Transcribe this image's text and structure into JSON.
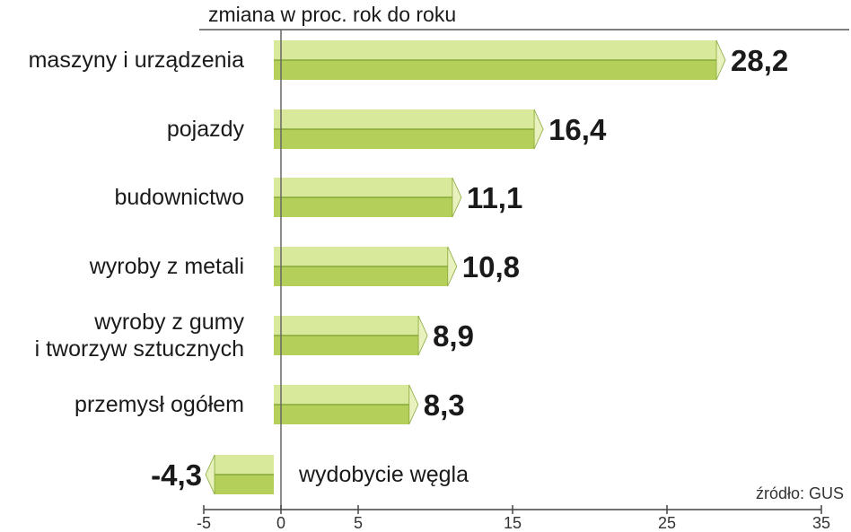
{
  "chart_data": {
    "type": "bar",
    "orientation": "horizontal",
    "subtitle": "zmiana w proc. rok do roku",
    "source": "źródło: GUS",
    "categories": [
      [
        "maszyny i urządzenia"
      ],
      [
        "pojazdy"
      ],
      [
        "budownictwo"
      ],
      [
        "wyroby z metali"
      ],
      [
        "wyroby z gumy",
        "i tworzyw sztucznych"
      ],
      [
        "przemysł ogółem"
      ],
      [
        "wydobycie węgla"
      ]
    ],
    "values": [
      28.2,
      16.4,
      11.1,
      10.8,
      8.9,
      8.3,
      -4.3
    ],
    "value_labels": [
      "28,2",
      "16,4",
      "11,1",
      "10,8",
      "8,9",
      "8,3",
      "-4,3"
    ],
    "xlim": [
      -5,
      35
    ],
    "x_ticks": [
      -5,
      0,
      5,
      15,
      25,
      35
    ],
    "x_tick_labels": [
      "-5",
      "0",
      "5",
      "15",
      "25",
      "35"
    ],
    "grid": false,
    "colors": {
      "bar_face": "#b4cf5a",
      "bar_top": "#d9e99b",
      "bar_shadow": "#86a83a",
      "bar_tip": "#e9f2be",
      "axis": "#444444"
    }
  }
}
